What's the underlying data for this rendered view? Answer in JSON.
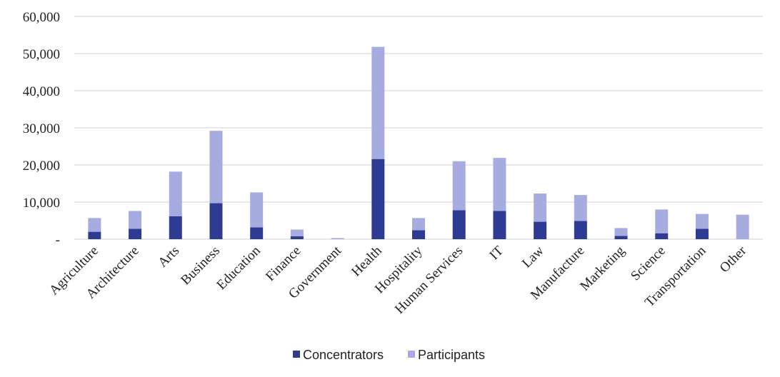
{
  "chart_data": {
    "type": "bar",
    "stacked": true,
    "categories": [
      "Agriculture",
      "Architecture",
      "Arts",
      "Business",
      "Education",
      "Finance",
      "Government",
      "Health",
      "Hospitality",
      "Human Services",
      "IT",
      "Law",
      "Manufacture",
      "Marketing",
      "Science",
      "Transportation",
      "Other"
    ],
    "series": [
      {
        "name": "Concentrators",
        "color": "#2e3b93",
        "values": [
          2000,
          2800,
          6200,
          9700,
          3200,
          800,
          0,
          21600,
          2400,
          7800,
          7600,
          4700,
          4900,
          900,
          1600,
          2800,
          0
        ]
      },
      {
        "name": "Participants",
        "color": "#a6acdf",
        "values": [
          3700,
          4800,
          12000,
          19500,
          9400,
          1800,
          300,
          30200,
          3300,
          13200,
          14300,
          7600,
          7000,
          2100,
          6400,
          4000,
          6600
        ]
      }
    ],
    "y_ticks": [
      "-",
      "10,000",
      "20,000",
      "30,000",
      "40,000",
      "50,000",
      "60,000"
    ],
    "ylim": [
      0,
      60000
    ],
    "grid": true,
    "legend_position": "bottom"
  }
}
